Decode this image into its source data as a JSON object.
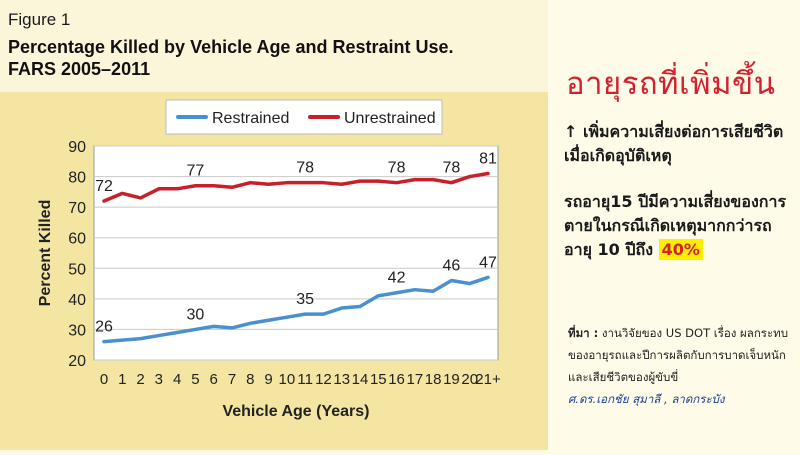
{
  "figure": {
    "label": "Figure 1",
    "title_line1": "Percentage Killed by Vehicle Age and Restraint Use.",
    "title_line2": "FARS 2005–2011"
  },
  "chart_data": {
    "type": "line",
    "title": "Percentage Killed by Vehicle Age and Restraint Use. FARS 2005–2011",
    "xlabel": "Vehicle Age (Years)",
    "ylabel": "Percent Killed",
    "categories": [
      "0",
      "1",
      "2",
      "3",
      "4",
      "5",
      "6",
      "7",
      "8",
      "9",
      "10",
      "11",
      "12",
      "13",
      "14",
      "15",
      "16",
      "17",
      "18",
      "19",
      "20",
      "21+"
    ],
    "yticks": [
      20,
      30,
      40,
      50,
      60,
      70,
      80,
      90
    ],
    "ylim": [
      20,
      90
    ],
    "grid": true,
    "legend_position": "top",
    "series": [
      {
        "name": "Restrained",
        "color": "#4a90d0",
        "values": [
          26,
          26.5,
          27,
          28,
          29,
          30,
          31,
          30.5,
          32,
          33,
          34,
          35,
          35,
          37,
          37.5,
          41,
          42,
          43,
          42.5,
          46,
          45,
          47
        ],
        "labels": [
          {
            "index": 0,
            "text": "26"
          },
          {
            "index": 5,
            "text": "30"
          },
          {
            "index": 11,
            "text": "35"
          },
          {
            "index": 16,
            "text": "42"
          },
          {
            "index": 19,
            "text": "46"
          },
          {
            "index": 21,
            "text": "47"
          }
        ]
      },
      {
        "name": "Unrestrained",
        "color": "#c8202a",
        "values": [
          72,
          74.5,
          73,
          76,
          76,
          77,
          77,
          76.5,
          78,
          77.5,
          78,
          78,
          78,
          77.5,
          78.5,
          78.5,
          78,
          79,
          79,
          78,
          80,
          81
        ],
        "labels": [
          {
            "index": 0,
            "text": "72"
          },
          {
            "index": 5,
            "text": "77"
          },
          {
            "index": 11,
            "text": "78"
          },
          {
            "index": 16,
            "text": "78"
          },
          {
            "index": 19,
            "text": "78"
          },
          {
            "index": 21,
            "text": "81"
          }
        ]
      }
    ]
  },
  "side": {
    "heading": "อายุรถที่เพิ่มขึ้น",
    "point1": "↑ เพิ่มความเสี่ยงต่อการเสียชีวิต เมื่อเกิดอุบัติเหตุ",
    "point2_text": "รถอายุ15 ปีมีความเสี่ยงของการตายในกรณีเกิดเหตุมากกว่ารถอายุ 10 ปีถึง",
    "point2_highlight": "40%",
    "source_label": "ที่มา :",
    "source_text": "งานวิจัยของ US DOT เรื่อง ผลกระทบของอายุรถและปีการผลิตกับการบาดเจ็บหนักและเสียชีวิตของผู้ขับขี่",
    "author": "ศ.ดร.เอกชัย สุมาลี , ลาดกระบัง"
  }
}
